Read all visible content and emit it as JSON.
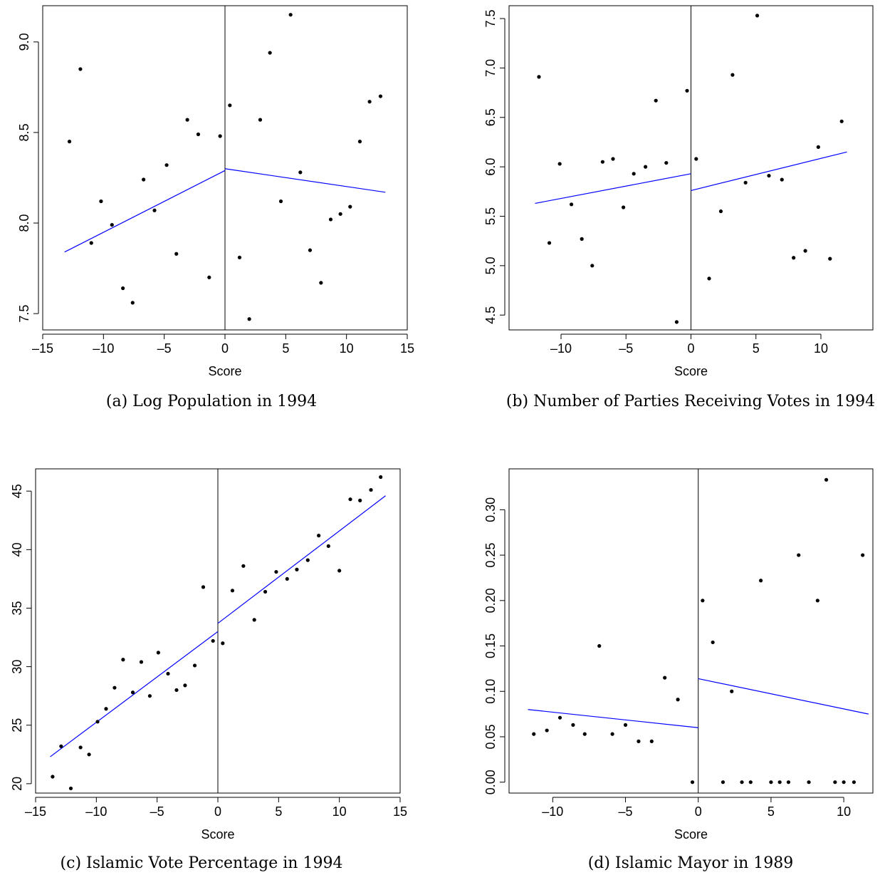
{
  "chart_data": [
    {
      "type": "scatter",
      "caption": "(a) Log Population in 1994",
      "xlabel": "Score",
      "xlim": [
        -15,
        15
      ],
      "ylim": [
        7.41,
        9.2
      ],
      "xticks": [
        -15,
        -10,
        -5,
        0,
        5,
        10,
        15
      ],
      "xtick_labels": [
        "–15",
        "–10",
        "–5",
        "0",
        "5",
        "10",
        "15"
      ],
      "yticks": [
        7.5,
        8.0,
        8.5,
        9.0
      ],
      "ytick_labels": [
        "7.5",
        "8.0",
        "8.5",
        "9.0"
      ],
      "cutoff": 0,
      "fit_color": "#0000ff",
      "fit_left": [
        [
          -13.2,
          7.84
        ],
        [
          0,
          8.29
        ]
      ],
      "fit_right": [
        [
          0,
          8.3
        ],
        [
          13.2,
          8.17
        ]
      ],
      "points": [
        [
          -12.8,
          8.45
        ],
        [
          -11.9,
          8.85
        ],
        [
          -11.0,
          7.89
        ],
        [
          -10.2,
          8.12
        ],
        [
          -9.3,
          7.99
        ],
        [
          -8.4,
          7.64
        ],
        [
          -7.6,
          7.56
        ],
        [
          -6.7,
          8.24
        ],
        [
          -5.8,
          8.07
        ],
        [
          -4.8,
          8.32
        ],
        [
          -4.0,
          7.83
        ],
        [
          -3.1,
          8.57
        ],
        [
          -2.2,
          8.49
        ],
        [
          -1.3,
          7.7
        ],
        [
          -0.4,
          8.48
        ],
        [
          0.4,
          8.65
        ],
        [
          1.2,
          7.81
        ],
        [
          2.0,
          7.47
        ],
        [
          2.9,
          8.57
        ],
        [
          3.7,
          8.94
        ],
        [
          4.6,
          8.12
        ],
        [
          5.4,
          9.15
        ],
        [
          6.2,
          8.28
        ],
        [
          7.0,
          7.85
        ],
        [
          7.9,
          7.67
        ],
        [
          8.7,
          8.02
        ],
        [
          9.5,
          8.05
        ],
        [
          10.3,
          8.09
        ],
        [
          11.1,
          8.45
        ],
        [
          11.9,
          8.67
        ],
        [
          12.8,
          8.7
        ]
      ]
    },
    {
      "type": "scatter",
      "caption": "(b) Number of Parties Receiving Votes in 1994",
      "xlabel": "Score",
      "xlim": [
        -14,
        14
      ],
      "ylim": [
        4.35,
        7.63
      ],
      "xticks": [
        -10,
        -5,
        0,
        5,
        10
      ],
      "xtick_labels": [
        "–10",
        "–5",
        "0",
        "5",
        "10"
      ],
      "yticks": [
        4.5,
        5.0,
        5.5,
        6.0,
        6.5,
        7.0,
        7.5
      ],
      "ytick_labels": [
        "4.5",
        "5.0",
        "5.5",
        "6.0",
        "6.5",
        "7.0",
        "7.5"
      ],
      "cutoff": 0,
      "fit_color": "#0000ff",
      "fit_left": [
        [
          -12.0,
          5.63
        ],
        [
          0,
          5.93
        ]
      ],
      "fit_right": [
        [
          0,
          5.76
        ],
        [
          12.0,
          6.15
        ]
      ],
      "points": [
        [
          -11.7,
          6.91
        ],
        [
          -10.9,
          5.23
        ],
        [
          -10.1,
          6.03
        ],
        [
          -9.2,
          5.62
        ],
        [
          -8.4,
          5.27
        ],
        [
          -7.6,
          5.0
        ],
        [
          -6.8,
          6.05
        ],
        [
          -6.0,
          6.08
        ],
        [
          -5.2,
          5.59
        ],
        [
          -4.4,
          5.93
        ],
        [
          -3.5,
          6.0
        ],
        [
          -2.7,
          6.67
        ],
        [
          -1.9,
          6.04
        ],
        [
          -1.1,
          4.43
        ],
        [
          -0.3,
          6.77
        ],
        [
          0.4,
          6.08
        ],
        [
          1.4,
          4.87
        ],
        [
          2.3,
          5.55
        ],
        [
          3.2,
          6.93
        ],
        [
          4.2,
          5.84
        ],
        [
          5.1,
          7.53
        ],
        [
          6.0,
          5.91
        ],
        [
          7.0,
          5.87
        ],
        [
          7.9,
          5.08
        ],
        [
          8.8,
          5.15
        ],
        [
          9.8,
          6.2
        ],
        [
          10.7,
          5.07
        ],
        [
          11.6,
          6.46
        ]
      ]
    },
    {
      "type": "scatter",
      "caption": "(c) Islamic Vote Percentage in 1994",
      "xlabel": "Score",
      "xlim": [
        -15,
        15
      ],
      "ylim": [
        19.2,
        46.9
      ],
      "xticks": [
        -15,
        -10,
        -5,
        0,
        5,
        10,
        15
      ],
      "xtick_labels": [
        "–15",
        "–10",
        "–5",
        "0",
        "5",
        "10",
        "15"
      ],
      "yticks": [
        20,
        25,
        30,
        35,
        40,
        45
      ],
      "ytick_labels": [
        "20",
        "25",
        "30",
        "35",
        "40",
        "45"
      ],
      "cutoff": 0,
      "fit_color": "#0000ff",
      "fit_left": [
        [
          -13.8,
          22.3
        ],
        [
          0,
          33.0
        ]
      ],
      "fit_right": [
        [
          0,
          33.7
        ],
        [
          13.8,
          44.6
        ]
      ],
      "points": [
        [
          -13.6,
          20.6
        ],
        [
          -12.9,
          23.2
        ],
        [
          -12.1,
          19.6
        ],
        [
          -11.3,
          23.1
        ],
        [
          -10.6,
          22.5
        ],
        [
          -9.9,
          25.3
        ],
        [
          -9.2,
          26.4
        ],
        [
          -8.5,
          28.2
        ],
        [
          -7.8,
          30.6
        ],
        [
          -7.0,
          27.8
        ],
        [
          -6.3,
          30.4
        ],
        [
          -5.6,
          27.5
        ],
        [
          -4.9,
          31.2
        ],
        [
          -4.1,
          29.4
        ],
        [
          -3.4,
          28.0
        ],
        [
          -2.7,
          28.4
        ],
        [
          -1.9,
          30.1
        ],
        [
          -1.2,
          36.8
        ],
        [
          -0.4,
          32.2
        ],
        [
          0.4,
          32.0
        ],
        [
          1.2,
          36.5
        ],
        [
          2.1,
          38.6
        ],
        [
          3.0,
          34.0
        ],
        [
          3.9,
          36.4
        ],
        [
          4.8,
          38.1
        ],
        [
          5.7,
          37.5
        ],
        [
          6.5,
          38.3
        ],
        [
          7.4,
          39.1
        ],
        [
          8.3,
          41.2
        ],
        [
          9.1,
          40.3
        ],
        [
          10.0,
          38.2
        ],
        [
          10.9,
          44.3
        ],
        [
          11.7,
          44.2
        ],
        [
          12.6,
          45.1
        ],
        [
          13.4,
          46.2
        ]
      ]
    },
    {
      "type": "scatter",
      "caption": "(d) Islamic Mayor in 1989",
      "xlabel": "Score",
      "xlim": [
        -13,
        12
      ],
      "ylim": [
        -0.012,
        0.345
      ],
      "xticks": [
        -10,
        -5,
        0,
        5,
        10
      ],
      "xtick_labels": [
        "–10",
        "–5",
        "0",
        "5",
        "10"
      ],
      "yticks": [
        0.0,
        0.05,
        0.1,
        0.15,
        0.2,
        0.25,
        0.3
      ],
      "ytick_labels": [
        "0.00",
        "0.05",
        "0.10",
        "0.15",
        "0.20",
        "0.25",
        "0.30"
      ],
      "cutoff": 0,
      "fit_color": "#0000ff",
      "fit_left": [
        [
          -11.7,
          0.08
        ],
        [
          0,
          0.06
        ]
      ],
      "fit_right": [
        [
          0,
          0.114
        ],
        [
          11.7,
          0.075
        ]
      ],
      "points": [
        [
          -11.3,
          0.053
        ],
        [
          -10.4,
          0.057
        ],
        [
          -9.5,
          0.071
        ],
        [
          -8.6,
          0.063
        ],
        [
          -7.8,
          0.053
        ],
        [
          -6.8,
          0.15
        ],
        [
          -5.9,
          0.053
        ],
        [
          -5.0,
          0.063
        ],
        [
          -4.1,
          0.045
        ],
        [
          -3.2,
          0.045
        ],
        [
          -2.3,
          0.115
        ],
        [
          -1.4,
          0.091
        ],
        [
          -0.4,
          0.0
        ],
        [
          0.3,
          0.2
        ],
        [
          1.0,
          0.154
        ],
        [
          1.7,
          0.0
        ],
        [
          2.3,
          0.1
        ],
        [
          3.0,
          0.0
        ],
        [
          3.6,
          0.0
        ],
        [
          4.3,
          0.222
        ],
        [
          5.0,
          0.0
        ],
        [
          5.6,
          0.0
        ],
        [
          6.2,
          0.0
        ],
        [
          6.9,
          0.25
        ],
        [
          7.6,
          0.0
        ],
        [
          8.2,
          0.2
        ],
        [
          8.8,
          0.333
        ],
        [
          9.4,
          0.0
        ],
        [
          10.0,
          0.0
        ],
        [
          10.7,
          0.0
        ],
        [
          11.3,
          0.25
        ]
      ]
    }
  ]
}
